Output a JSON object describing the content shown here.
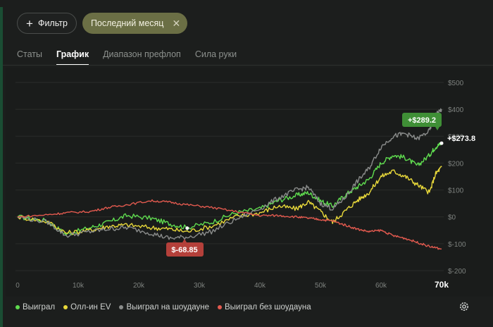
{
  "filters": {
    "filter_label": "Фильтр",
    "period_label": "Последний месяц"
  },
  "tabs": [
    {
      "label": "Статы",
      "active": false
    },
    {
      "label": "График",
      "active": true
    },
    {
      "label": "Диапазон префлоп",
      "active": false
    },
    {
      "label": "Сила руки",
      "active": false
    }
  ],
  "chart_data": {
    "type": "line",
    "x_ticks": [
      "0",
      "10k",
      "20k",
      "30k",
      "40k",
      "50k",
      "60k",
      "70k"
    ],
    "x_range": [
      0,
      70000
    ],
    "y_ticks": [
      "$500",
      "$400",
      "$300",
      "$200",
      "$100",
      "$0",
      "$-100",
      "$-200"
    ],
    "y_range": [
      -200,
      500
    ],
    "grid": true,
    "legend_position": "bottom",
    "series": [
      {
        "name": "Выиграл",
        "color": "#5fdc4f",
        "points": [
          [
            0,
            0
          ],
          [
            5000,
            -15
          ],
          [
            8000,
            -65
          ],
          [
            12000,
            -40
          ],
          [
            15000,
            -20
          ],
          [
            18000,
            5
          ],
          [
            22000,
            -5
          ],
          [
            25000,
            -25
          ],
          [
            28000,
            -40
          ],
          [
            32000,
            -20
          ],
          [
            36000,
            15
          ],
          [
            40000,
            30
          ],
          [
            43000,
            60
          ],
          [
            46000,
            80
          ],
          [
            48000,
            90
          ],
          [
            50000,
            60
          ],
          [
            52000,
            40
          ],
          [
            54000,
            80
          ],
          [
            56000,
            110
          ],
          [
            58000,
            140
          ],
          [
            60000,
            200
          ],
          [
            62000,
            230
          ],
          [
            64000,
            220
          ],
          [
            66000,
            190
          ],
          [
            68000,
            230
          ],
          [
            69000,
            260
          ],
          [
            70000,
            274
          ]
        ]
      },
      {
        "name": "Олл-ин EV",
        "color": "#e8d83a",
        "points": [
          [
            0,
            0
          ],
          [
            5000,
            -18
          ],
          [
            8000,
            -60
          ],
          [
            12000,
            -50
          ],
          [
            15000,
            -35
          ],
          [
            18000,
            -30
          ],
          [
            22000,
            -40
          ],
          [
            25000,
            -45
          ],
          [
            28000,
            -55
          ],
          [
            32000,
            -35
          ],
          [
            36000,
            0
          ],
          [
            40000,
            15
          ],
          [
            43000,
            40
          ],
          [
            46000,
            30
          ],
          [
            48000,
            55
          ],
          [
            50000,
            20
          ],
          [
            52000,
            -20
          ],
          [
            54000,
            20
          ],
          [
            56000,
            60
          ],
          [
            58000,
            90
          ],
          [
            60000,
            150
          ],
          [
            62000,
            170
          ],
          [
            64000,
            150
          ],
          [
            66000,
            120
          ],
          [
            68000,
            90
          ],
          [
            69000,
            160
          ],
          [
            70000,
            185
          ]
        ]
      },
      {
        "name": "Выиграл на шоудауне",
        "color": "#8a8c8b",
        "points": [
          [
            0,
            0
          ],
          [
            5000,
            -20
          ],
          [
            8000,
            -70
          ],
          [
            12000,
            -55
          ],
          [
            15000,
            -45
          ],
          [
            18000,
            -40
          ],
          [
            22000,
            -60
          ],
          [
            25000,
            -80
          ],
          [
            28000,
            -75
          ],
          [
            32000,
            -55
          ],
          [
            36000,
            -10
          ],
          [
            40000,
            30
          ],
          [
            43000,
            70
          ],
          [
            46000,
            100
          ],
          [
            48000,
            110
          ],
          [
            50000,
            50
          ],
          [
            52000,
            30
          ],
          [
            54000,
            70
          ],
          [
            56000,
            130
          ],
          [
            58000,
            180
          ],
          [
            60000,
            260
          ],
          [
            62000,
            300
          ],
          [
            64000,
            310
          ],
          [
            66000,
            290
          ],
          [
            68000,
            320
          ],
          [
            69000,
            380
          ],
          [
            70000,
            400
          ]
        ]
      },
      {
        "name": "Выиграл без шоудауна",
        "color": "#e35a4f",
        "points": [
          [
            0,
            0
          ],
          [
            5000,
            8
          ],
          [
            8000,
            15
          ],
          [
            12000,
            20
          ],
          [
            15000,
            35
          ],
          [
            18000,
            45
          ],
          [
            22000,
            60
          ],
          [
            25000,
            55
          ],
          [
            28000,
            45
          ],
          [
            32000,
            35
          ],
          [
            36000,
            20
          ],
          [
            40000,
            5
          ],
          [
            43000,
            5
          ],
          [
            46000,
            0
          ],
          [
            48000,
            -5
          ],
          [
            50000,
            -10
          ],
          [
            52000,
            -15
          ],
          [
            54000,
            -30
          ],
          [
            56000,
            -45
          ],
          [
            58000,
            -55
          ],
          [
            60000,
            -50
          ],
          [
            62000,
            -70
          ],
          [
            64000,
            -80
          ],
          [
            66000,
            -95
          ],
          [
            68000,
            -110
          ],
          [
            70000,
            -120
          ]
        ]
      }
    ],
    "annotations": [
      {
        "text": "+$289.2",
        "style": "badge-green"
      },
      {
        "text": "+$273.8",
        "style": "plain"
      },
      {
        "text": "$-68.85",
        "style": "badge-red"
      }
    ]
  }
}
